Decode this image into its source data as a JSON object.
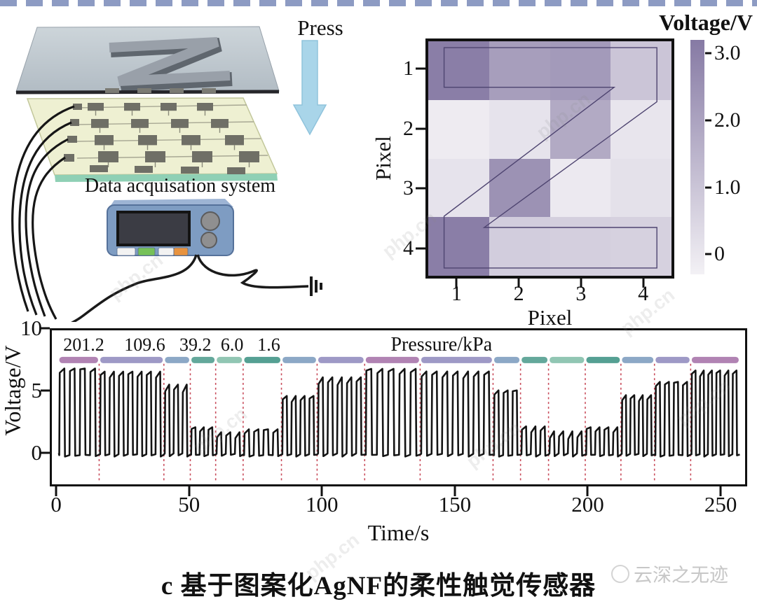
{
  "page": {
    "background": "#ffffff",
    "top_border_color": "#8d9bc3"
  },
  "illustration": {
    "press_label": "Press",
    "daq_label": "Data acquisation system",
    "arrow_color": "#a9d5e9",
    "plate_color_top": "#cdd5da",
    "plate_color_bottom": "#b2bcc4",
    "z_specimen_color": "#99a0a9",
    "substrate_color": "#eef0d2",
    "substrate_edge_color": "#8fd0b5",
    "electrode_color": "#6f6f66",
    "wire_color": "#1a1a1a",
    "device_body_color": "#7e9cc2",
    "device_screen_color": "#3b3c44",
    "device_button_colors": [
      "#f2f2f2",
      "#76c158",
      "#f2f2f2",
      "#e8933f"
    ]
  },
  "caption": "c 基于图案化AgNF的柔性触觉传感器",
  "watermark": {
    "brand": "云深之无迹",
    "tile": "php.cn"
  },
  "chart_data": [
    {
      "type": "heatmap",
      "title": "Voltage/V",
      "xlabel": "Pixel",
      "ylabel": "Pixel",
      "x_ticks": [
        "1",
        "2",
        "3",
        "4"
      ],
      "y_ticks": [
        "1",
        "2",
        "3",
        "4"
      ],
      "value_range": [
        0,
        3
      ],
      "values_rows_top_to_bottom": [
        [
          2.9,
          2.1,
          2.2,
          1.1
        ],
        [
          0.15,
          0.35,
          1.8,
          0.3
        ],
        [
          0.35,
          2.4,
          0.2,
          0.4
        ],
        [
          2.9,
          0.9,
          0.85,
          0.8
        ]
      ],
      "colormap": {
        "low": "#f3f1f5",
        "high": "#867aa4"
      },
      "colorbar_tick_labels": [
        "3.0",
        "2.0",
        "1.0",
        "0"
      ],
      "colorbar_tick_values": [
        3,
        2,
        1,
        0
      ],
      "colorbar_value_span": [
        -0.3,
        3.2
      ],
      "overlay": {
        "shape": "letter-Z-outline",
        "color": "#4e4470",
        "polygon_pct": [
          [
            6.5,
            2.7
          ],
          [
            94,
            2.7
          ],
          [
            94,
            25.8
          ],
          [
            23,
            79.4
          ],
          [
            94,
            79.4
          ],
          [
            94,
            96.7
          ],
          [
            6.5,
            96.7
          ],
          [
            6.5,
            74.6
          ],
          [
            76.4,
            19.6
          ],
          [
            6.5,
            19.6
          ]
        ]
      }
    },
    {
      "type": "line",
      "title": "",
      "xlabel": "Time/s",
      "ylabel": "Voltage/V",
      "x_ticks": [
        0,
        50,
        100,
        150,
        200,
        250
      ],
      "y_ticks": [
        0,
        5,
        10
      ],
      "xlim": [
        -2.4,
        260
      ],
      "ylim": [
        -2.67,
        10
      ],
      "grid": false,
      "line_color": "#141414",
      "separator_color": "#c84b5a",
      "pressure_unit_label": {
        "text": "Pressure/kPa",
        "x_pct": 56.2
      },
      "pressure_value_labels": [
        {
          "text": "201.2",
          "x_pct": 4.6
        },
        {
          "text": "109.6",
          "x_pct": 13.4
        },
        {
          "text": "39.2",
          "x_pct": 20.7
        },
        {
          "text": "6.0",
          "x_pct": 26.0
        },
        {
          "text": "1.6",
          "x_pct": 31.3
        }
      ],
      "segments": [
        {
          "start": 0,
          "end": 15.5,
          "pressure_kPa": 201.2,
          "amplitude_V": 6.8,
          "pulses": 4,
          "capsule_color": "#b183b3"
        },
        {
          "start": 15.5,
          "end": 40,
          "pressure_kPa": 109.6,
          "amplitude_V": 6.4,
          "pulses": 7,
          "capsule_color": "#9e99c6"
        },
        {
          "start": 40,
          "end": 50,
          "pressure_kPa": 39.2,
          "amplitude_V": 5.2,
          "pulses": 3,
          "capsule_color": "#8ca8c6"
        },
        {
          "start": 50,
          "end": 59.6,
          "pressure_kPa": 6.0,
          "amplitude_V": 1.9,
          "pulses": 3,
          "capsule_color": "#64a89b"
        },
        {
          "start": 59.6,
          "end": 70,
          "pressure_kPa": 1.6,
          "amplitude_V": 1.35,
          "pulses": 3,
          "capsule_color": "#91c6b3"
        },
        {
          "start": 70,
          "end": 84.5,
          "pressure_kPa": 6.0,
          "amplitude_V": 1.8,
          "pulses": 4,
          "capsule_color": "#55a093"
        },
        {
          "start": 84.5,
          "end": 98,
          "pressure_kPa": 39.2,
          "amplitude_V": 4.4,
          "pulses": 4,
          "capsule_color": "#8ca8c6"
        },
        {
          "start": 98,
          "end": 116,
          "pressure_kPa": 109.6,
          "amplitude_V": 5.8,
          "pulses": 5,
          "capsule_color": "#9e99c6"
        },
        {
          "start": 116,
          "end": 137,
          "pressure_kPa": 201.2,
          "amplitude_V": 6.7,
          "pulses": 5,
          "capsule_color": "#b183b3"
        },
        {
          "start": 137,
          "end": 164.6,
          "pressure_kPa": 109.6,
          "amplitude_V": 6.35,
          "pulses": 7,
          "capsule_color": "#9e99c6"
        },
        {
          "start": 164.6,
          "end": 175,
          "pressure_kPa": 39.2,
          "amplitude_V": 5.0,
          "pulses": 3,
          "capsule_color": "#8ca8c6"
        },
        {
          "start": 175,
          "end": 185.6,
          "pressure_kPa": 6.0,
          "amplitude_V": 1.9,
          "pulses": 3,
          "capsule_color": "#64a89b"
        },
        {
          "start": 185.6,
          "end": 199.5,
          "pressure_kPa": 1.6,
          "amplitude_V": 1.35,
          "pulses": 4,
          "capsule_color": "#91c6b3"
        },
        {
          "start": 199.5,
          "end": 213,
          "pressure_kPa": 6.0,
          "amplitude_V": 1.9,
          "pulses": 4,
          "capsule_color": "#55a093"
        },
        {
          "start": 213,
          "end": 225.7,
          "pressure_kPa": 39.2,
          "amplitude_V": 4.4,
          "pulses": 4,
          "capsule_color": "#8ca8c6"
        },
        {
          "start": 225.7,
          "end": 239.4,
          "pressure_kPa": 109.6,
          "amplitude_V": 5.7,
          "pulses": 4,
          "capsule_color": "#9e99c6"
        },
        {
          "start": 239.4,
          "end": 258,
          "pressure_kPa": 201.2,
          "amplitude_V": 6.5,
          "pulses": 6,
          "capsule_color": "#b183b3"
        }
      ],
      "capsule_level_V": 7.55
    }
  ]
}
